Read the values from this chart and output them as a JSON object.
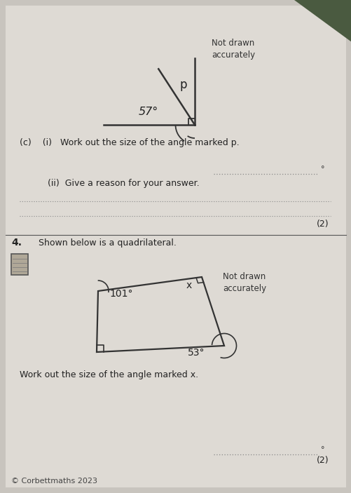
{
  "bg_color": "#c8c4be",
  "paper_color": "#dedad4",
  "title_not_drawn1": "Not drawn\naccurately",
  "title_not_drawn2": "Not drawn\naccurately",
  "angle_57_label": "57°",
  "angle_p_label": "p",
  "angle_101_label": "101°",
  "angle_x_label": "x",
  "angle_53_label": "53°",
  "question_c_i": "(c)    (i)   Work out the size of the angle marked p.",
  "question_c_ii": "(ii)  Give a reason for your answer.",
  "degree_symbol": "°",
  "marks_2_1": "(2)",
  "question_4_label": "4.",
  "question_4_text": "Shown below is a quadrilateral.",
  "question_4_work": "Work out the size of the angle marked x.",
  "marks_2_2": "(2)",
  "footer": "© Corbettmaths 2023",
  "fig_width": 5.02,
  "fig_height": 7.03,
  "dpi": 100
}
